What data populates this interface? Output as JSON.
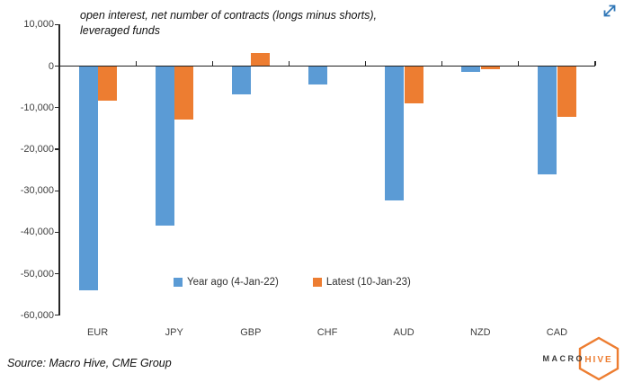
{
  "header": {
    "title": "open interest, net number of contracts (longs minus shorts),\nleveraged funds",
    "expand_icon": "diagonal-resize-arrows"
  },
  "chart_data": {
    "type": "bar",
    "categories": [
      "EUR",
      "JPY",
      "GBP",
      "CHF",
      "AUD",
      "NZD",
      "CAD"
    ],
    "series": [
      {
        "name": "Year ago (4-Jan-22)",
        "color": "#5B9BD5",
        "values": [
          -54000,
          -38400,
          -6800,
          -4500,
          -32300,
          -1300,
          -26000
        ]
      },
      {
        "name": "Latest (10-Jan-23)",
        "color": "#ED7D31",
        "values": [
          -8400,
          -12800,
          3200,
          0,
          -8900,
          -800,
          -12300
        ]
      }
    ],
    "title": "open interest, net number of contracts (longs minus shorts), leveraged funds",
    "xlabel": "",
    "ylabel": "",
    "ylim": [
      -60000,
      10000
    ],
    "ytick_step": 10000,
    "ytick_labels": [
      "10,000",
      "0",
      "-10,000",
      "-20,000",
      "-30,000",
      "-40,000",
      "-50,000",
      "-60,000"
    ],
    "grid": false,
    "legend_position": "inside-bottom-center"
  },
  "footer": {
    "source": "Source: Macro Hive, CME Group"
  },
  "logo": {
    "text_left": "MACRO",
    "text_hex": "HIVE"
  },
  "colors": {
    "bar_blue": "#5B9BD5",
    "bar_orange": "#ED7D31",
    "axis": "#262626",
    "tick_label": "#404040",
    "expand_arrow_blue": "#2E75B6",
    "logo_orange": "#ED7D31",
    "logo_dark": "#3A3A3A"
  }
}
